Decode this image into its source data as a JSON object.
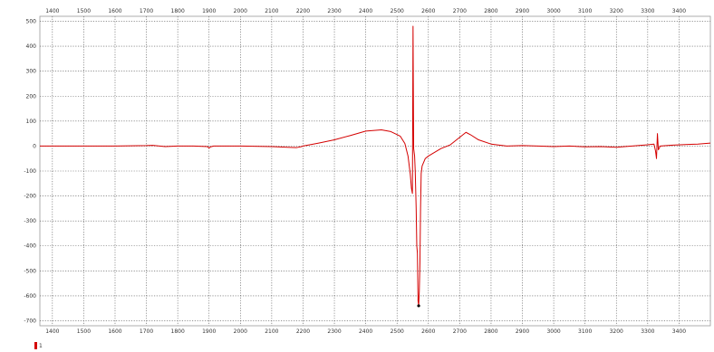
{
  "chart_data": {
    "type": "line",
    "title": "",
    "xlabel": "",
    "ylabel": "",
    "xlim": [
      1360,
      3500
    ],
    "ylim": [
      -720,
      520
    ],
    "x_ticks": [
      1400,
      1500,
      1600,
      1700,
      1800,
      1900,
      2000,
      2100,
      2200,
      2300,
      2400,
      2500,
      2600,
      2700,
      2800,
      2900,
      3000,
      3100,
      3200,
      3300,
      3400
    ],
    "x_tick_labels_top": [
      "1400",
      "1500",
      "1600",
      "1700",
      "1800",
      "1900",
      "2000",
      "2100",
      "2200",
      "2300",
      "2400",
      "2500",
      "2600",
      "2700",
      "2800",
      "2900",
      "3000",
      "3100",
      "3200",
      "3300",
      "3400"
    ],
    "x_tick_labels_bottom": [
      "1400",
      "1500",
      "1600",
      "1700",
      "1800",
      "1900",
      "2000",
      "2100",
      "2200",
      "2300",
      "2400",
      "2500",
      "2600",
      "2700",
      "2800",
      "2900",
      "3000",
      "3100",
      "3200",
      "3300",
      "3400"
    ],
    "y_ticks": [
      500,
      400,
      300,
      200,
      100,
      0,
      -100,
      -200,
      -300,
      -400,
      -500,
      -600,
      -700
    ],
    "y_tick_labels": [
      "500",
      "400",
      "300",
      "200",
      "100",
      "0",
      "-100",
      "-200",
      "-300",
      "-400",
      "-500",
      "-600",
      "-700"
    ],
    "grid": true,
    "legend_position": "bottom-left",
    "series": [
      {
        "name": "1",
        "color": "#d40000",
        "points": [
          [
            1360,
            0
          ],
          [
            1500,
            0
          ],
          [
            1600,
            0
          ],
          [
            1700,
            2
          ],
          [
            1720,
            3
          ],
          [
            1760,
            -2
          ],
          [
            1800,
            0
          ],
          [
            1850,
            0
          ],
          [
            1895,
            -2
          ],
          [
            1900,
            -8
          ],
          [
            1905,
            -3
          ],
          [
            1915,
            0
          ],
          [
            2000,
            0
          ],
          [
            2100,
            -2
          ],
          [
            2150,
            -5
          ],
          [
            2180,
            -6
          ],
          [
            2195,
            -2
          ],
          [
            2200,
            0
          ],
          [
            2250,
            12
          ],
          [
            2300,
            25
          ],
          [
            2350,
            42
          ],
          [
            2400,
            60
          ],
          [
            2450,
            65
          ],
          [
            2480,
            58
          ],
          [
            2510,
            40
          ],
          [
            2525,
            10
          ],
          [
            2535,
            -40
          ],
          [
            2542,
            -110
          ],
          [
            2546,
            -170
          ],
          [
            2549,
            -190
          ],
          [
            2551,
            480
          ],
          [
            2553,
            -10
          ],
          [
            2556,
            -40
          ],
          [
            2558,
            -100
          ],
          [
            2561,
            -250
          ],
          [
            2563,
            -400
          ],
          [
            2565,
            -430
          ],
          [
            2567,
            -620
          ],
          [
            2569,
            -640
          ],
          [
            2571,
            -580
          ],
          [
            2573,
            -470
          ],
          [
            2575,
            -250
          ],
          [
            2577,
            -110
          ],
          [
            2580,
            -80
          ],
          [
            2590,
            -50
          ],
          [
            2600,
            -40
          ],
          [
            2640,
            -10
          ],
          [
            2670,
            5
          ],
          [
            2700,
            35
          ],
          [
            2720,
            55
          ],
          [
            2735,
            45
          ],
          [
            2760,
            25
          ],
          [
            2800,
            8
          ],
          [
            2850,
            0
          ],
          [
            2900,
            2
          ],
          [
            2950,
            0
          ],
          [
            3000,
            -2
          ],
          [
            3050,
            0
          ],
          [
            3100,
            -3
          ],
          [
            3150,
            -2
          ],
          [
            3200,
            -5
          ],
          [
            3250,
            0
          ],
          [
            3300,
            5
          ],
          [
            3320,
            8
          ],
          [
            3325,
            -20
          ],
          [
            3328,
            -50
          ],
          [
            3331,
            50
          ],
          [
            3334,
            -15
          ],
          [
            3340,
            0
          ],
          [
            3380,
            4
          ],
          [
            3420,
            6
          ],
          [
            3460,
            8
          ],
          [
            3500,
            12
          ]
        ]
      }
    ]
  }
}
